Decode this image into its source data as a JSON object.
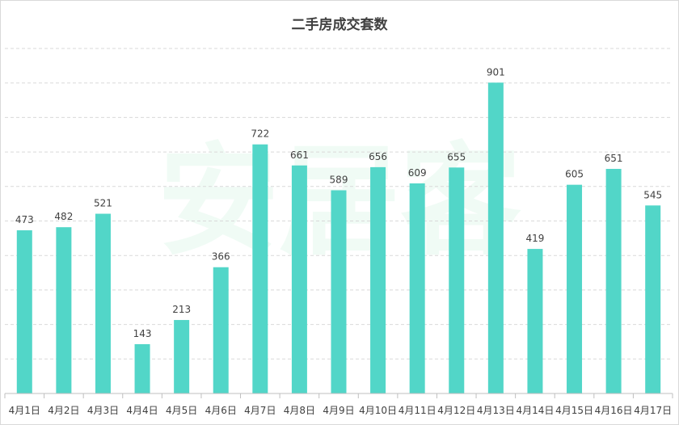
{
  "chart_data": {
    "type": "bar",
    "title": "二手房成交套数",
    "categories": [
      "4月1日",
      "4月2日",
      "4月3日",
      "4月4日",
      "4月5日",
      "4月6日",
      "4月7日",
      "4月8日",
      "4月9日",
      "4月10日",
      "4月11日",
      "4月12日",
      "4月13日",
      "4月14日",
      "4月15日",
      "4月16日",
      "4月17日"
    ],
    "values": [
      473,
      482,
      521,
      143,
      213,
      366,
      722,
      661,
      589,
      656,
      609,
      655,
      901,
      419,
      605,
      651,
      545
    ],
    "ylim": [
      0,
      1000
    ],
    "grid": true,
    "data_labels": true,
    "bar_color": "#52d6c8",
    "grid_color": "#d9d9d9"
  },
  "watermark": "安居客"
}
